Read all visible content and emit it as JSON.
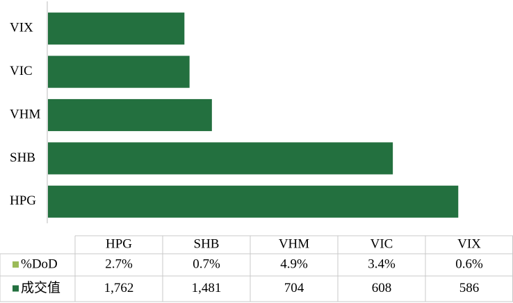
{
  "chart_data": {
    "type": "bar",
    "orientation": "horizontal",
    "categories": [
      "HPG",
      "SHB",
      "VHM",
      "VIC",
      "VIX"
    ],
    "series": [
      {
        "name": "%DoD",
        "color": "#9bbb59",
        "values": [
          2.7,
          0.7,
          4.9,
          3.4,
          0.6
        ],
        "value_labels": [
          "2.7%",
          "0.7%",
          "4.9%",
          "3.4%",
          "0.6%"
        ]
      },
      {
        "name": "成交值",
        "color": "#23703f",
        "values": [
          1762,
          1481,
          704,
          608,
          586
        ],
        "value_labels": [
          "1,762",
          "1,481",
          "704",
          "608",
          "586"
        ]
      }
    ],
    "xlim": [
      0,
      2000
    ]
  }
}
